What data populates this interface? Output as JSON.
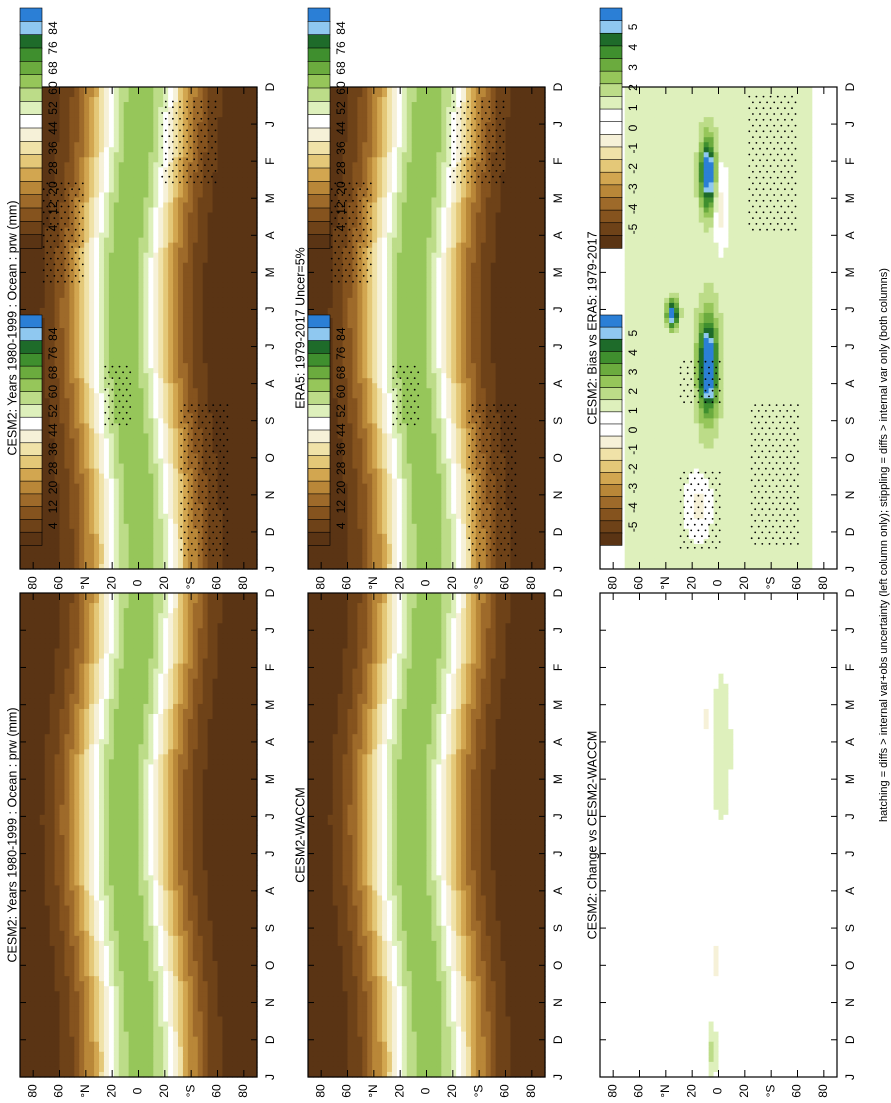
{
  "figure": {
    "footnote": "hatching = diffs > internal var+obs uncertainty (left column only); stippling = diffs > internal var only (both columns)"
  },
  "chart_data": [
    {
      "type": "heatmap",
      "id": "p1",
      "title": "CESM2: Years 1980-1999 : Ocean : prw (mm)",
      "x_ticks": [
        "D",
        "J",
        "F",
        "M",
        "A",
        "M",
        "J",
        "J",
        "A",
        "S",
        "O",
        "N",
        "D",
        "J"
      ],
      "y_ticks": [
        "80",
        "60",
        "°N",
        "20",
        "0",
        "20",
        "°S",
        "60",
        "80"
      ],
      "field": "clim",
      "stipple": "left"
    },
    {
      "type": "heatmap",
      "id": "p2",
      "title": "CESM2: Years 1980-1999 : Ocean : prw (mm)",
      "x_ticks": [
        "D",
        "J",
        "F",
        "M",
        "A",
        "M",
        "J",
        "J",
        "A",
        "S",
        "O",
        "N",
        "D",
        "J"
      ],
      "y_ticks": [
        "80",
        "60",
        "°N",
        "20",
        "0",
        "20",
        "°S",
        "60",
        "80"
      ],
      "field": "clim",
      "stipple": "none"
    },
    {
      "type": "heatmap",
      "id": "p3",
      "title": "ERA5: 1979-2017 Uncer=5%",
      "x_ticks": [
        "D",
        "J",
        "F",
        "M",
        "A",
        "M",
        "J",
        "J",
        "A",
        "S",
        "O",
        "N",
        "D",
        "J"
      ],
      "y_ticks": [
        "80",
        "60",
        "°N",
        "20",
        "0",
        "20",
        "°S",
        "60",
        "80"
      ],
      "field": "clim",
      "stipple": "left"
    },
    {
      "type": "heatmap",
      "id": "p4",
      "title": "CESM2-WACCM",
      "x_ticks": [
        "D",
        "J",
        "F",
        "M",
        "A",
        "M",
        "J",
        "J",
        "A",
        "S",
        "O",
        "N",
        "D",
        "J"
      ],
      "y_ticks": [
        "80",
        "60",
        "°N",
        "20",
        "0",
        "20",
        "°S",
        "60",
        "80"
      ],
      "field": "clim",
      "stipple": "none"
    },
    {
      "type": "heatmap",
      "id": "p5",
      "title": "CESM2: Bias vs ERA5: 1979-2017",
      "x_ticks": [
        "D",
        "J",
        "F",
        "M",
        "A",
        "M",
        "J",
        "J",
        "A",
        "S",
        "O",
        "N",
        "D",
        "J"
      ],
      "y_ticks": [
        "80",
        "60",
        "°N",
        "20",
        "0",
        "20",
        "°S",
        "60",
        "80"
      ],
      "field": "bias",
      "stipple": "bias"
    },
    {
      "type": "heatmap",
      "id": "p6",
      "title": "CESM2: Change vs CESM2-WACCM",
      "x_ticks": [
        "D",
        "J",
        "F",
        "M",
        "A",
        "M",
        "J",
        "J",
        "A",
        "S",
        "O",
        "N",
        "D",
        "J"
      ],
      "y_ticks": [
        "80",
        "60",
        "°N",
        "20",
        "0",
        "20",
        "°S",
        "60",
        "80"
      ],
      "field": "change",
      "stipple": "none"
    }
  ],
  "colorbars": {
    "clim": {
      "labels": [
        "84",
        "76",
        "68",
        "60",
        "52",
        "44",
        "36",
        "28",
        "20",
        "12",
        "4"
      ],
      "colors": [
        "#2b7fd6",
        "#8fc8f0",
        "#1e6b2a",
        "#3f8f2e",
        "#6bab3e",
        "#96c65a",
        "#bcdc88",
        "#def0bc",
        "#ffffff",
        "#f6f1d8",
        "#f0e2a8",
        "#e4c878",
        "#d2a650",
        "#b98738",
        "#9e6a2a",
        "#85531e",
        "#6e4218",
        "#5a3414"
      ]
    },
    "diff": {
      "labels": [
        "5",
        "4",
        "3",
        "2",
        "1",
        "0",
        "-1",
        "-2",
        "-3",
        "-4",
        "-5"
      ],
      "colors": [
        "#2b7fd6",
        "#8fc8f0",
        "#1e6b2a",
        "#3f8f2e",
        "#6bab3e",
        "#96c65a",
        "#bcdc88",
        "#def0bc",
        "#ffffff",
        "#ffffff",
        "#f6f1d8",
        "#f0e2a8",
        "#e4c878",
        "#d2a650",
        "#b98738",
        "#9e6a2a",
        "#85531e",
        "#6e4218",
        "#5a3414"
      ]
    }
  }
}
